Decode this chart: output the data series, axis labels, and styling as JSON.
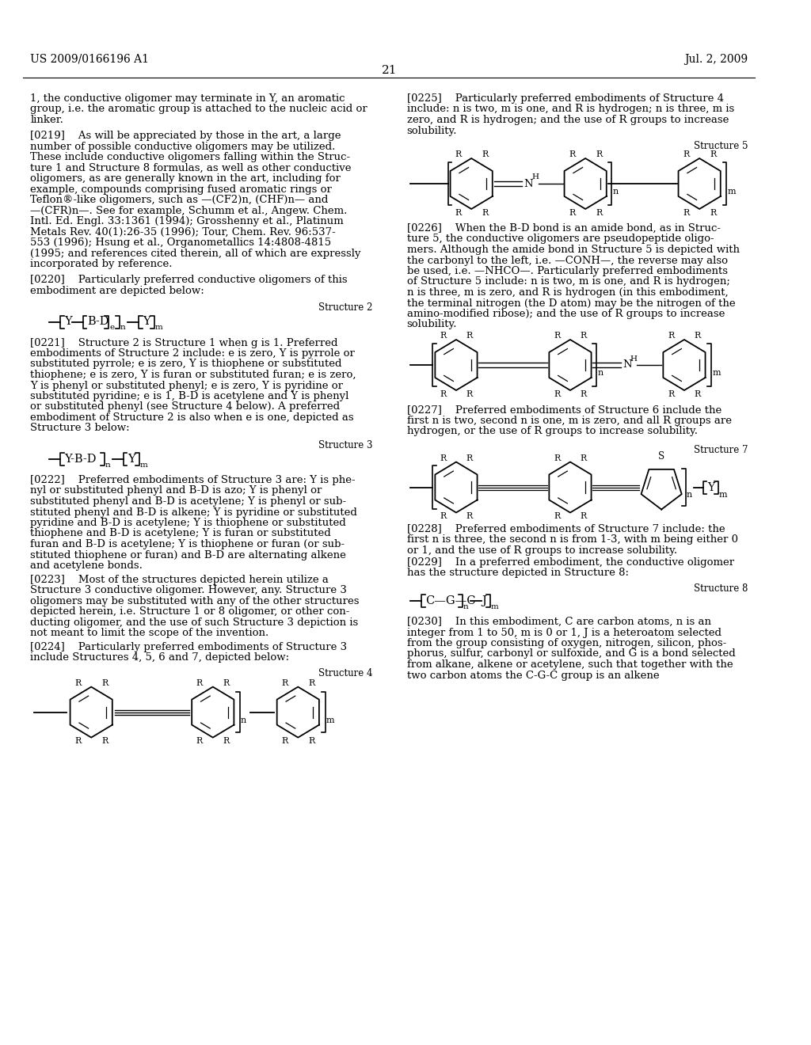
{
  "header_left": "US 2009/0166196 A1",
  "header_right": "Jul. 2, 2009",
  "page_number": "21",
  "bg_color": "#ffffff",
  "text_color": "#000000",
  "left_col_paragraphs": [
    "1, the conductive oligomer may terminate in Y, an aromatic",
    "group, i.e. the aromatic group is attached to the nucleic acid or",
    "linker.",
    "",
    "[0219]    As will be appreciated by those in the art, a large",
    "number of possible conductive oligomers may be utilized.",
    "These include conductive oligomers falling within the Struc-",
    "ture 1 and Structure 8 formulas, as well as other conductive",
    "oligomers, as are generally known in the art, including for",
    "example, compounds comprising fused aromatic rings or",
    "Teflon®-like oligomers, such as —(CF2)n, (CHF)n— and",
    "—(CFR)n—. See for example, Schumm et al., Angew. Chem.",
    "Intl. Ed. Engl. 33:1361 (1994); Grosshenny et al., Platinum",
    "Metals Rev. 40(1):26-35 (1996); Tour, Chem. Rev. 96:537-",
    "553 (1996); Hsung et al., Organometallics 14:4808-4815",
    "(1995; and references cited therein, all of which are expressly",
    "incorporated by reference.",
    "",
    "[0220]    Particularly preferred conductive oligomers of this",
    "embodiment are depicted below:"
  ],
  "right_col_paragraphs_top": [
    "[0225]    Particularly preferred embodiments of Structure 4",
    "include: n is two, m is one, and R is hydrogen; n is three, m is",
    "zero, and R is hydrogen; and the use of R groups to increase",
    "solubility."
  ],
  "para_0226": [
    "[0226]    When the B-D bond is an amide bond, as in Struc-",
    "ture 5, the conductive oligomers are pseudopeptide oligo-",
    "mers. Although the amide bond in Structure 5 is depicted with",
    "the carbonyl to the left, i.e. —CONH—, the reverse may also",
    "be used, i.e. —NHCO—. Particularly preferred embodiments",
    "of Structure 5 include: n is two, m is one, and R is hydrogen;",
    "n is three, m is zero, and R is hydrogen (in this embodiment,",
    "the terminal nitrogen (the D atom) may be the nitrogen of the",
    "amino-modified ribose); and the use of R groups to increase",
    "solubility."
  ],
  "para_0227": [
    "[0227]    Preferred embodiments of Structure 6 include the",
    "first n is two, second n is one, m is zero, and all R groups are",
    "hydrogen, or the use of R groups to increase solubility."
  ],
  "para_0228": [
    "[0228]    Preferred embodiments of Structure 7 include: the",
    "first n is three, the second n is from 1-3, with m being either 0",
    "or 1, and the use of R groups to increase solubility."
  ],
  "para_0229": [
    "[0229]    In a preferred embodiment, the conductive oligomer",
    "has the structure depicted in Structure 8:"
  ],
  "para_0230": [
    "[0230]    In this embodiment, C are carbon atoms, n is an",
    "integer from 1 to 50, m is 0 or 1, J is a heteroatom selected",
    "from the group consisting of oxygen, nitrogen, silicon, phos-",
    "phorus, sulfur, carbonyl or sulfoxide, and G is a bond selected",
    "from alkane, alkene or acetylene, such that together with the",
    "two carbon atoms the C-G-C group is an alkene"
  ],
  "para_0221": [
    "[0221]    Structure 2 is Structure 1 when g is 1. Preferred",
    "embodiments of Structure 2 include: e is zero, Y is pyrrole or",
    "substituted pyrrole; e is zero, Y is thiophene or substituted",
    "thiophene; e is zero, Y is furan or substituted furan; e is zero,",
    "Y is phenyl or substituted phenyl; e is zero, Y is pyridine or",
    "substituted pyridine; e is 1, B-D is acetylene and Y is phenyl",
    "or substituted phenyl (see Structure 4 below). A preferred",
    "embodiment of Structure 2 is also when e is one, depicted as",
    "Structure 3 below:"
  ],
  "para_0222": [
    "[0222]    Preferred embodiments of Structure 3 are: Y is phe-",
    "nyl or substituted phenyl and B-D is azo; Y is phenyl or",
    "substituted phenyl and B-D is acetylene; Y is phenyl or sub-",
    "stituted phenyl and B-D is alkene; Y is pyridine or substituted",
    "pyridine and B-D is acetylene; Y is thiophene or substituted",
    "thiophene and B-D is acetylene; Y is furan or substituted",
    "furan and B-D is acetylene; Y is thiophene or furan (or sub-",
    "stituted thiophene or furan) and B-D are alternating alkene",
    "and acetylene bonds."
  ],
  "para_0223": [
    "[0223]    Most of the structures depicted herein utilize a",
    "Structure 3 conductive oligomer. However, any. Structure 3",
    "oligomers may be substituted with any of the other structures",
    "depicted herein, i.e. Structure 1 or 8 oligomer, or other con-",
    "ducting oligomer, and the use of such Structure 3 depiction is",
    "not meant to limit the scope of the invention."
  ],
  "para_0224": [
    "[0224]    Particularly preferred embodiments of Structure 3",
    "include Structures 4, 5, 6 and 7, depicted below:"
  ]
}
